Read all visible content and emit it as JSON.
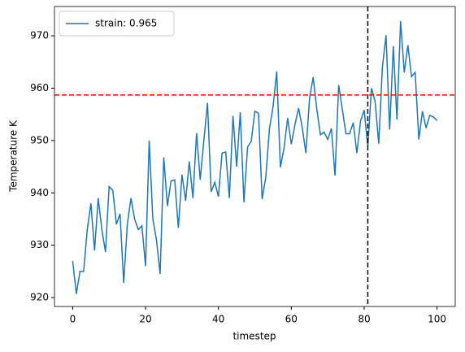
{
  "chart_data": {
    "type": "line",
    "xlabel": "timestep",
    "ylabel": "Temperature K",
    "x": [
      0,
      1,
      2,
      3,
      4,
      5,
      6,
      7,
      8,
      9,
      10,
      11,
      12,
      13,
      14,
      15,
      16,
      17,
      18,
      19,
      20,
      21,
      22,
      23,
      24,
      25,
      26,
      27,
      28,
      29,
      30,
      31,
      32,
      33,
      34,
      35,
      36,
      37,
      38,
      39,
      40,
      41,
      42,
      43,
      44,
      45,
      46,
      47,
      48,
      49,
      50,
      51,
      52,
      53,
      54,
      55,
      56,
      57,
      58,
      59,
      60,
      61,
      62,
      63,
      64,
      65,
      66,
      67,
      68,
      69,
      70,
      71,
      72,
      73,
      74,
      75,
      76,
      77,
      78,
      79,
      80,
      81,
      82,
      83,
      84,
      85,
      86,
      87,
      88,
      89,
      90,
      91,
      92,
      93,
      94,
      95,
      96,
      97,
      98,
      99,
      100
    ],
    "series": [
      {
        "name": "strain: 0.965",
        "color": "#1f77b4",
        "values": [
          927,
          920.7,
          925,
          925,
          933,
          938,
          929,
          939,
          933,
          928.7,
          941.2,
          940.5,
          934,
          936,
          922.8,
          934,
          939,
          935,
          933,
          933.7,
          926,
          950,
          935,
          931,
          924.5,
          946.8,
          937.5,
          942.3,
          942.5,
          933.3,
          943.5,
          938.5,
          946,
          939,
          951.4,
          942.5,
          950,
          957.2,
          940.2,
          942,
          939.3,
          947.6,
          947.8,
          939,
          954.7,
          945,
          955.4,
          938.2,
          948.8,
          949.8,
          955.6,
          955.2,
          938.8,
          943,
          952.2,
          956.5,
          963.2,
          944.9,
          948.5,
          954.3,
          949.3,
          953,
          956.2,
          952.5,
          947.6,
          958,
          962.1,
          956,
          951.1,
          951.6,
          950.2,
          952.3,
          943.3,
          960.6,
          956,
          951.3,
          951.3,
          953.4,
          947.6,
          953.7,
          955.8,
          948.8,
          960,
          957.5,
          949.4,
          964,
          970.1,
          952.1,
          968,
          954,
          972.8,
          963,
          968.2,
          962.2,
          963,
          950.2,
          955.6,
          952.4,
          954.8,
          954.5,
          953.8
        ]
      }
    ],
    "hline": {
      "value": 958.7,
      "color": "#ff0000"
    },
    "vline": {
      "value": 81,
      "color": "#000000"
    },
    "xlim": [
      -5,
      105
    ],
    "ylim": [
      918.3,
      975.6
    ],
    "xticks": [
      0,
      20,
      40,
      60,
      80,
      100
    ],
    "yticks": [
      920,
      930,
      940,
      950,
      960,
      970
    ],
    "legend": "upper left"
  }
}
